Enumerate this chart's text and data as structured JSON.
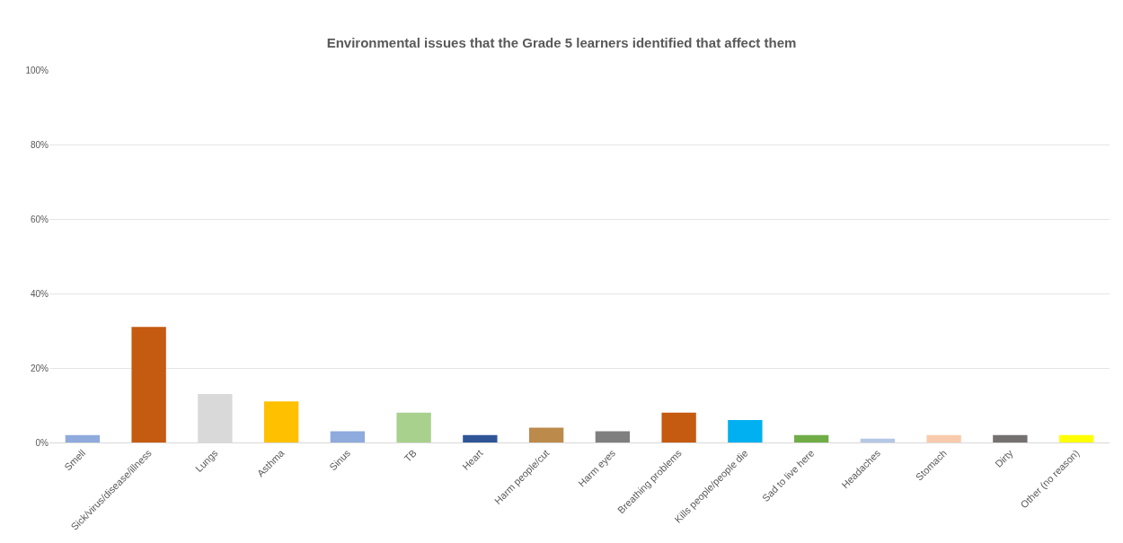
{
  "chart_data": {
    "type": "bar",
    "title": "Environmental issues that the Grade 5 learners identified that affect them",
    "categories": [
      "Smell",
      "Sick/virus/disease/illness",
      "Lungs",
      "Asthma",
      "Sinus",
      "TB",
      "Heart",
      "Harm people/cut",
      "Harm eyes",
      "Breathing problems",
      "Kills people/people die",
      "Sad to live here",
      "Headaches",
      "Stomach",
      "Dirty",
      "Other (no reason)"
    ],
    "values": [
      2,
      31,
      13,
      11,
      3,
      8,
      2,
      4,
      3,
      8,
      6,
      2,
      1,
      2,
      2,
      2
    ],
    "colors": [
      "#8faadc",
      "#c55a11",
      "#d9d9d9",
      "#ffc000",
      "#8faadc",
      "#a9d18e",
      "#2f5597",
      "#bc8a4a",
      "#7f7f7f",
      "#c55a11",
      "#00b0f0",
      "#70ad47",
      "#b4c7e7",
      "#f8cbad",
      "#767171",
      "#ffff00"
    ],
    "ylim": [
      0,
      100
    ],
    "yticks": [
      {
        "value": 0,
        "label": "0%"
      },
      {
        "value": 20,
        "label": "20%"
      },
      {
        "value": 40,
        "label": "40%"
      },
      {
        "value": 60,
        "label": "60%"
      },
      {
        "value": 80,
        "label": "80%"
      },
      {
        "value": 100,
        "label": "100%"
      }
    ],
    "grid": "y"
  }
}
